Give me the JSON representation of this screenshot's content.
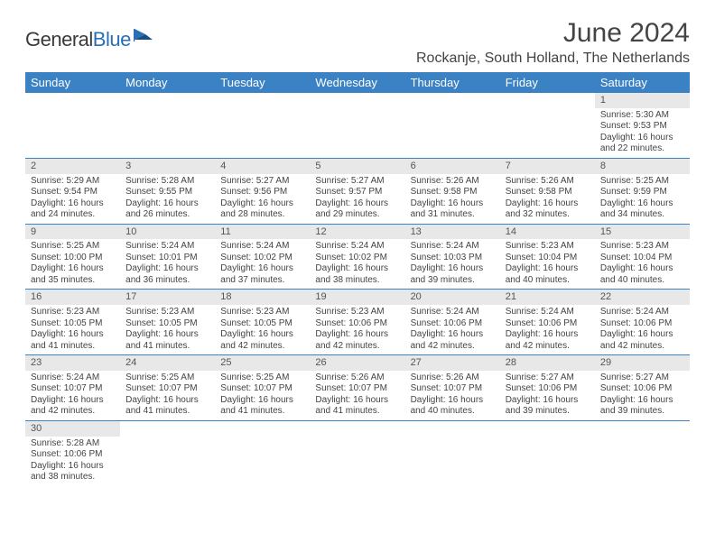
{
  "logo": {
    "text_a": "General",
    "text_b": "Blue"
  },
  "title": "June 2024",
  "location": "Rockanje, South Holland, The Netherlands",
  "colors": {
    "header_bg": "#3b82c4",
    "header_text": "#ffffff",
    "daynum_bg": "#e8e8e8",
    "cell_border": "#3b82c4",
    "text": "#444444"
  },
  "day_headers": [
    "Sunday",
    "Monday",
    "Tuesday",
    "Wednesday",
    "Thursday",
    "Friday",
    "Saturday"
  ],
  "weeks": [
    [
      null,
      null,
      null,
      null,
      null,
      null,
      {
        "n": "1",
        "sunrise": "5:30 AM",
        "sunset": "9:53 PM",
        "dl_h": "16",
        "dl_m": "22"
      }
    ],
    [
      {
        "n": "2",
        "sunrise": "5:29 AM",
        "sunset": "9:54 PM",
        "dl_h": "16",
        "dl_m": "24"
      },
      {
        "n": "3",
        "sunrise": "5:28 AM",
        "sunset": "9:55 PM",
        "dl_h": "16",
        "dl_m": "26"
      },
      {
        "n": "4",
        "sunrise": "5:27 AM",
        "sunset": "9:56 PM",
        "dl_h": "16",
        "dl_m": "28"
      },
      {
        "n": "5",
        "sunrise": "5:27 AM",
        "sunset": "9:57 PM",
        "dl_h": "16",
        "dl_m": "29"
      },
      {
        "n": "6",
        "sunrise": "5:26 AM",
        "sunset": "9:58 PM",
        "dl_h": "16",
        "dl_m": "31"
      },
      {
        "n": "7",
        "sunrise": "5:26 AM",
        "sunset": "9:58 PM",
        "dl_h": "16",
        "dl_m": "32"
      },
      {
        "n": "8",
        "sunrise": "5:25 AM",
        "sunset": "9:59 PM",
        "dl_h": "16",
        "dl_m": "34"
      }
    ],
    [
      {
        "n": "9",
        "sunrise": "5:25 AM",
        "sunset": "10:00 PM",
        "dl_h": "16",
        "dl_m": "35"
      },
      {
        "n": "10",
        "sunrise": "5:24 AM",
        "sunset": "10:01 PM",
        "dl_h": "16",
        "dl_m": "36"
      },
      {
        "n": "11",
        "sunrise": "5:24 AM",
        "sunset": "10:02 PM",
        "dl_h": "16",
        "dl_m": "37"
      },
      {
        "n": "12",
        "sunrise": "5:24 AM",
        "sunset": "10:02 PM",
        "dl_h": "16",
        "dl_m": "38"
      },
      {
        "n": "13",
        "sunrise": "5:24 AM",
        "sunset": "10:03 PM",
        "dl_h": "16",
        "dl_m": "39"
      },
      {
        "n": "14",
        "sunrise": "5:23 AM",
        "sunset": "10:04 PM",
        "dl_h": "16",
        "dl_m": "40"
      },
      {
        "n": "15",
        "sunrise": "5:23 AM",
        "sunset": "10:04 PM",
        "dl_h": "16",
        "dl_m": "40"
      }
    ],
    [
      {
        "n": "16",
        "sunrise": "5:23 AM",
        "sunset": "10:05 PM",
        "dl_h": "16",
        "dl_m": "41"
      },
      {
        "n": "17",
        "sunrise": "5:23 AM",
        "sunset": "10:05 PM",
        "dl_h": "16",
        "dl_m": "41"
      },
      {
        "n": "18",
        "sunrise": "5:23 AM",
        "sunset": "10:05 PM",
        "dl_h": "16",
        "dl_m": "42"
      },
      {
        "n": "19",
        "sunrise": "5:23 AM",
        "sunset": "10:06 PM",
        "dl_h": "16",
        "dl_m": "42"
      },
      {
        "n": "20",
        "sunrise": "5:24 AM",
        "sunset": "10:06 PM",
        "dl_h": "16",
        "dl_m": "42"
      },
      {
        "n": "21",
        "sunrise": "5:24 AM",
        "sunset": "10:06 PM",
        "dl_h": "16",
        "dl_m": "42"
      },
      {
        "n": "22",
        "sunrise": "5:24 AM",
        "sunset": "10:06 PM",
        "dl_h": "16",
        "dl_m": "42"
      }
    ],
    [
      {
        "n": "23",
        "sunrise": "5:24 AM",
        "sunset": "10:07 PM",
        "dl_h": "16",
        "dl_m": "42"
      },
      {
        "n": "24",
        "sunrise": "5:25 AM",
        "sunset": "10:07 PM",
        "dl_h": "16",
        "dl_m": "41"
      },
      {
        "n": "25",
        "sunrise": "5:25 AM",
        "sunset": "10:07 PM",
        "dl_h": "16",
        "dl_m": "41"
      },
      {
        "n": "26",
        "sunrise": "5:26 AM",
        "sunset": "10:07 PM",
        "dl_h": "16",
        "dl_m": "41"
      },
      {
        "n": "27",
        "sunrise": "5:26 AM",
        "sunset": "10:07 PM",
        "dl_h": "16",
        "dl_m": "40"
      },
      {
        "n": "28",
        "sunrise": "5:27 AM",
        "sunset": "10:06 PM",
        "dl_h": "16",
        "dl_m": "39"
      },
      {
        "n": "29",
        "sunrise": "5:27 AM",
        "sunset": "10:06 PM",
        "dl_h": "16",
        "dl_m": "39"
      }
    ],
    [
      {
        "n": "30",
        "sunrise": "5:28 AM",
        "sunset": "10:06 PM",
        "dl_h": "16",
        "dl_m": "38"
      },
      null,
      null,
      null,
      null,
      null,
      null
    ]
  ],
  "labels": {
    "sunrise": "Sunrise:",
    "sunset": "Sunset:",
    "daylight_prefix": "Daylight:",
    "hours_word": "hours",
    "and_word": "and",
    "minutes_word": "minutes."
  }
}
